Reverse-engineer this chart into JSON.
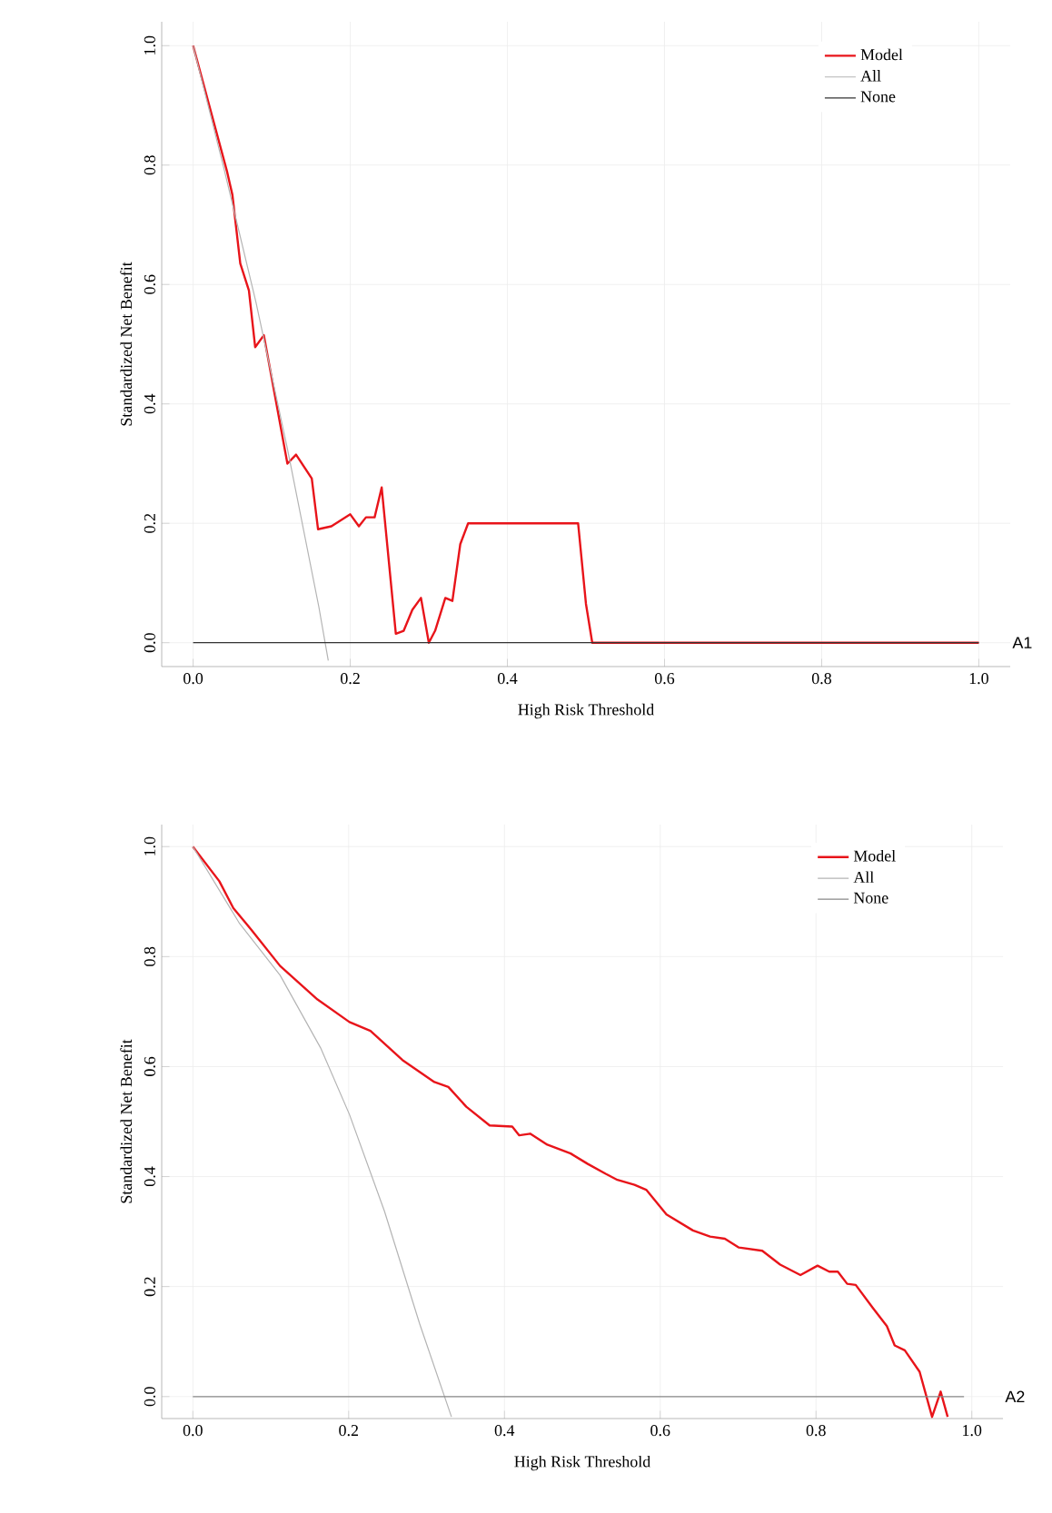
{
  "chart_data": [
    {
      "type": "line",
      "xlabel": "High Risk Threshold",
      "ylabel": "Standardized Net Benefit",
      "annotations": [
        "A1"
      ],
      "xlim": [
        -0.04,
        1.04
      ],
      "ylim": [
        -0.04,
        1.04
      ],
      "xticks": [
        {
          "value": 0,
          "label": "0.0"
        },
        {
          "value": 0.2,
          "label": "0.2"
        },
        {
          "value": 0.4,
          "label": "0.4"
        },
        {
          "value": 0.6,
          "label": "0.6"
        },
        {
          "value": 0.8,
          "label": "0.8"
        },
        {
          "value": 1,
          "label": "1.0"
        }
      ],
      "yticks": [
        {
          "value": 0,
          "label": "0.0"
        },
        {
          "value": 0.2,
          "label": "0.2"
        },
        {
          "value": 0.4,
          "label": "0.4"
        },
        {
          "value": 0.6,
          "label": "0.6"
        },
        {
          "value": 0.8,
          "label": "0.8"
        },
        {
          "value": 1,
          "label": "1.0"
        }
      ],
      "grid": true,
      "legend": "top right",
      "marker": "none",
      "line_style": "solid",
      "series": [
        {
          "name": "Model",
          "color": "#e8141a",
          "x": [
            0,
            0.043,
            0.05,
            0.06,
            0.071,
            0.079,
            0.09,
            0.12,
            0.131,
            0.151,
            0.159,
            0.176,
            0.2,
            0.211,
            0.22,
            0.231,
            0.24,
            0.258,
            0.268,
            0.279,
            0.29,
            0.3,
            0.308,
            0.321,
            0.33,
            0.34,
            0.35,
            0.49,
            0.5,
            0.508,
            1.0
          ],
          "values": [
            1.0,
            0.79,
            0.75,
            0.635,
            0.59,
            0.495,
            0.515,
            0.3,
            0.315,
            0.275,
            0.19,
            0.195,
            0.215,
            0.195,
            0.21,
            0.21,
            0.26,
            0.015,
            0.02,
            0.055,
            0.075,
            0.0,
            0.02,
            0.075,
            0.07,
            0.165,
            0.2,
            0.2,
            0.065,
            0.0,
            0.0
          ]
        },
        {
          "name": "All",
          "color": "#b4b4b4",
          "x": [
            0,
            0.04,
            0.08,
            0.12,
            0.16,
            0.168,
            0.172
          ],
          "values": [
            1.0,
            0.79,
            0.57,
            0.325,
            0.06,
            0.0,
            -0.03
          ]
        },
        {
          "name": "None",
          "color": "#333333",
          "x": [
            0,
            1.0
          ],
          "values": [
            0,
            0
          ]
        }
      ]
    },
    {
      "type": "line",
      "xlabel": "High Risk Threshold",
      "ylabel": "Standardized Net Benefit",
      "annotations": [
        "A2"
      ],
      "xlim": [
        -0.04,
        1.04
      ],
      "ylim": [
        -0.04,
        1.04
      ],
      "xticks": [
        {
          "value": 0,
          "label": "0.0"
        },
        {
          "value": 0.2,
          "label": "0.2"
        },
        {
          "value": 0.4,
          "label": "0.4"
        },
        {
          "value": 0.6,
          "label": "0.6"
        },
        {
          "value": 0.8,
          "label": "0.8"
        },
        {
          "value": 1,
          "label": "1.0"
        }
      ],
      "yticks": [
        {
          "value": 0,
          "label": "0.0"
        },
        {
          "value": 0.2,
          "label": "0.2"
        },
        {
          "value": 0.4,
          "label": "0.4"
        },
        {
          "value": 0.6,
          "label": "0.6"
        },
        {
          "value": 0.8,
          "label": "0.8"
        },
        {
          "value": 1,
          "label": "1.0"
        }
      ],
      "grid": true,
      "legend": "top right",
      "marker": "none",
      "line_style": "solid",
      "series": [
        {
          "name": "Model",
          "color": "#e8141a",
          "x": [
            0,
            0.034,
            0.052,
            0.075,
            0.112,
            0.16,
            0.201,
            0.228,
            0.269,
            0.31,
            0.328,
            0.351,
            0.381,
            0.41,
            0.419,
            0.433,
            0.455,
            0.485,
            0.507,
            0.53,
            0.545,
            0.567,
            0.582,
            0.608,
            0.642,
            0.664,
            0.683,
            0.701,
            0.731,
            0.754,
            0.78,
            0.802,
            0.817,
            0.828,
            0.84,
            0.851,
            0.873,
            0.891,
            0.901,
            0.914,
            0.933,
            0.949,
            0.96,
            0.969
          ],
          "values": [
            1.0,
            0.937,
            0.888,
            0.849,
            0.783,
            0.722,
            0.681,
            0.665,
            0.612,
            0.572,
            0.563,
            0.527,
            0.493,
            0.491,
            0.475,
            0.478,
            0.458,
            0.442,
            0.423,
            0.405,
            0.394,
            0.385,
            0.376,
            0.331,
            0.302,
            0.291,
            0.287,
            0.271,
            0.265,
            0.24,
            0.221,
            0.238,
            0.227,
            0.227,
            0.205,
            0.203,
            0.161,
            0.128,
            0.093,
            0.084,
            0.045,
            -0.037,
            0.009,
            -0.037
          ]
        },
        {
          "name": "All",
          "color": "#b4b4b4",
          "x": [
            0,
            0.06,
            0.112,
            0.164,
            0.201,
            0.246,
            0.291,
            0.332
          ],
          "values": [
            1.0,
            0.86,
            0.766,
            0.634,
            0.513,
            0.337,
            0.133,
            -0.037
          ]
        },
        {
          "name": "None",
          "color": "#888888",
          "x": [
            0,
            0.99
          ],
          "values": [
            0,
            0
          ]
        }
      ]
    }
  ]
}
